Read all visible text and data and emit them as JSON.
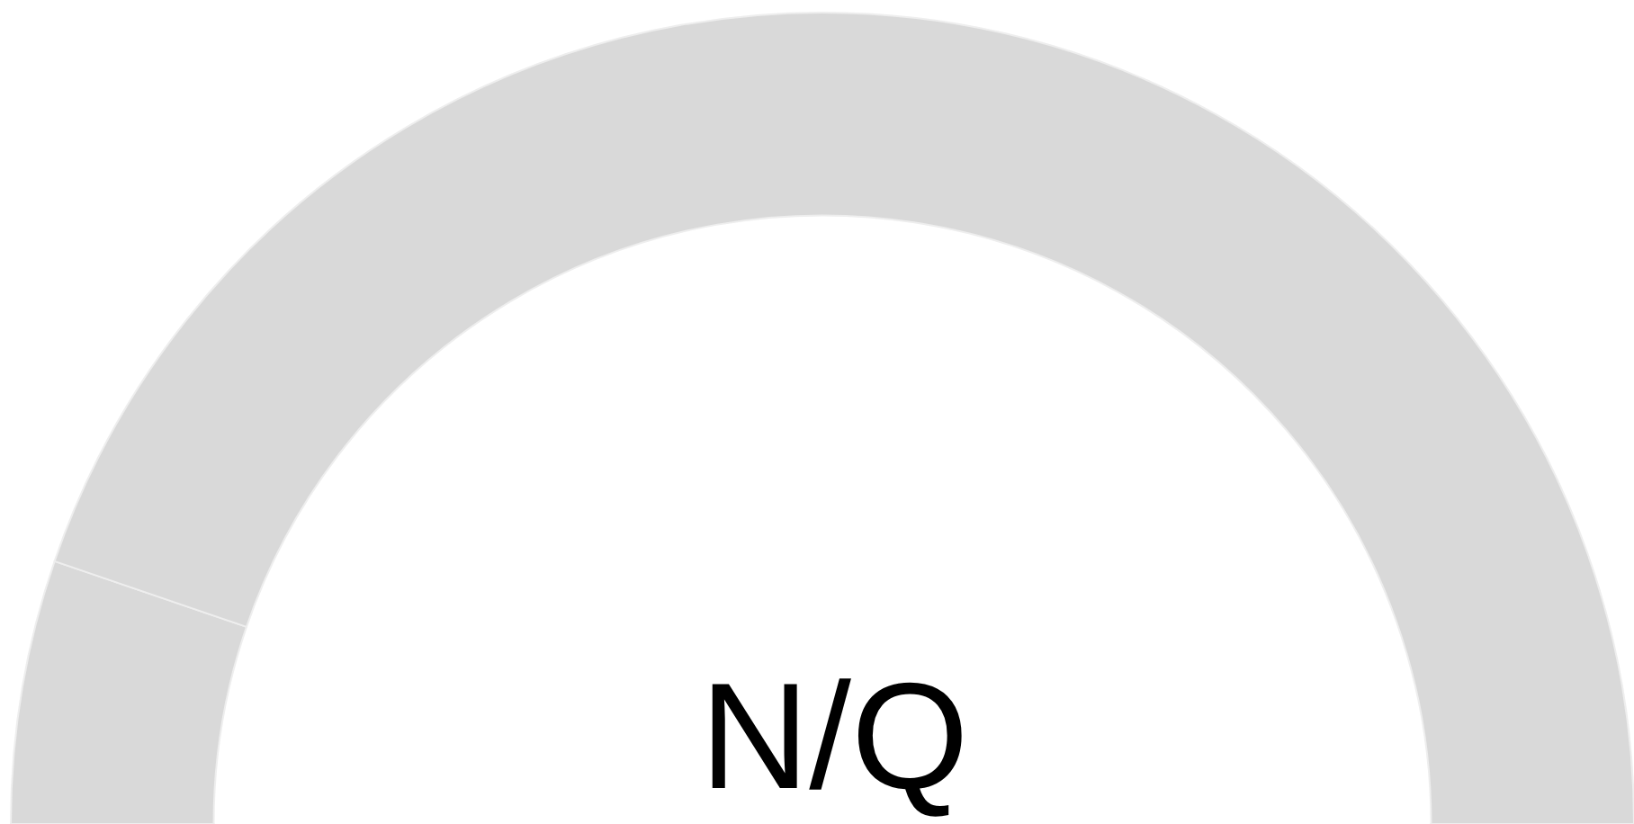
{
  "chart_data": {
    "type": "donut",
    "categories": [
      null,
      null
    ],
    "values": [
      10.5,
      89.5
    ],
    "colors": [
      "#d9d9d9",
      "#d9d9d9"
    ],
    "annotations": [
      "N/Q"
    ]
  }
}
